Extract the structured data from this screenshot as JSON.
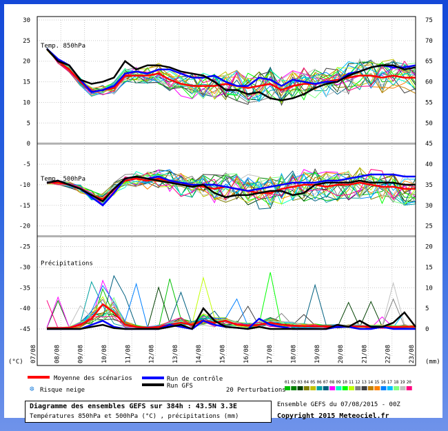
{
  "chart_data": {
    "type": "line",
    "x_ticks": [
      "07/08",
      "08/08",
      "09/08",
      "10/08",
      "11/08",
      "12/08",
      "13/08",
      "14/08",
      "15/08",
      "16/08",
      "17/08",
      "18/08",
      "19/08",
      "20/08",
      "21/08",
      "22/08",
      "23/08"
    ],
    "left_axis": {
      "unit": "(°C)",
      "ticks": [
        30,
        25,
        20,
        15,
        10,
        5,
        0,
        -5,
        -10,
        -15,
        -20,
        -25,
        -30,
        -35,
        -40,
        -45
      ],
      "range": [
        -45,
        30
      ]
    },
    "right_axis": {
      "unit": "(mm)",
      "ticks": [
        75,
        70,
        65,
        60,
        55,
        50,
        45,
        40,
        35,
        30,
        25,
        20,
        15,
        10,
        5,
        0
      ],
      "range": [
        0,
        75
      ]
    },
    "panels": [
      {
        "label": "Temp. 850hPa",
        "axis": "left",
        "series": [
          {
            "name": "Moyenne des scénarios",
            "color": "#ff0000",
            "values": [
              23,
              20,
              18,
              15,
              12.5,
              13,
              13.5,
              16.5,
              16.5,
              16.5,
              17,
              15.5,
              14.5,
              14,
              14,
              14,
              14.5,
              14,
              13.5,
              14,
              14.5,
              13,
              14,
              14.5,
              14.5,
              15,
              15.5,
              16,
              16.5,
              16.5,
              16,
              16.5,
              16,
              16
            ]
          },
          {
            "name": "Run de contrôle",
            "color": "#0000ff",
            "values": [
              23,
              20.5,
              19,
              15.5,
              12.5,
              13,
              14,
              17,
              17.5,
              17,
              18,
              18,
              17,
              16,
              16,
              16.5,
              15,
              14,
              14,
              16,
              15.5,
              14,
              15.5,
              15,
              14.5,
              15,
              15,
              17,
              17.5,
              18.5,
              19,
              18.5,
              18.5,
              19
            ]
          },
          {
            "name": "Run GFS",
            "color": "#000000",
            "values": [
              23,
              20,
              19,
              15.5,
              14.5,
              15,
              16,
              20,
              18,
              19,
              19,
              18.5,
              17.5,
              17,
              16.5,
              15,
              13,
              13,
              12,
              12.5,
              11,
              10.5,
              11,
              12,
              13.5,
              14.5,
              15,
              16.5,
              17.5,
              18.5,
              19,
              19,
              18,
              18.5
            ]
          }
        ]
      },
      {
        "label": "Temp. 500hPa",
        "axis": "left",
        "series": [
          {
            "name": "Moyenne des scénarios",
            "color": "#ff0000",
            "values": [
              -9.5,
              -9.5,
              -10,
              -11,
              -12.5,
              -13.5,
              -11,
              -9,
              -8.5,
              -9,
              -8.5,
              -9,
              -10,
              -10,
              -10.5,
              -11,
              -10.5,
              -11,
              -11.5,
              -12,
              -12,
              -11,
              -10.5,
              -10,
              -10,
              -10.5,
              -10,
              -10,
              -9.5,
              -10,
              -10.5,
              -10.5,
              -11,
              -11
            ]
          },
          {
            "name": "Run de contrôle",
            "color": "#0000ff",
            "values": [
              -9.5,
              -9,
              -10,
              -11,
              -13,
              -15,
              -12,
              -8.5,
              -8,
              -8.5,
              -8,
              -9,
              -9.5,
              -10,
              -10,
              -10,
              -10.5,
              -11,
              -11.5,
              -11,
              -10.5,
              -10,
              -9.5,
              -9.5,
              -9.5,
              -9,
              -9,
              -8.5,
              -8,
              -7.5,
              -7.5,
              -7.5,
              -8,
              -8
            ]
          },
          {
            "name": "Run GFS",
            "color": "#000000",
            "values": [
              -9.5,
              -9,
              -10,
              -11,
              -12.5,
              -14,
              -11,
              -8.5,
              -8,
              -8.5,
              -9,
              -9.5,
              -10,
              -10.5,
              -10,
              -12,
              -13,
              -12.5,
              -12.5,
              -12,
              -11.5,
              -11.5,
              -12.5,
              -12,
              -10,
              -9.5,
              -9.5,
              -9.5,
              -9,
              -9.5,
              -9.5,
              -9.5,
              -10,
              -10
            ]
          }
        ]
      },
      {
        "label": "Précipitations",
        "axis": "right",
        "series": [
          {
            "name": "Moyenne des scénarios",
            "color": "#ff0000",
            "values": [
              0.2,
              0.2,
              0.3,
              1,
              2.5,
              6,
              4,
              1,
              0.5,
              0.3,
              0.5,
              1,
              1.5,
              1,
              2,
              1.5,
              2,
              1,
              0.8,
              1,
              1.5,
              1,
              0.8,
              0.7,
              0.6,
              0.6,
              0.6,
              0.6,
              0.6,
              0.5,
              0.5,
              0.5,
              0.5,
              0.5
            ]
          },
          {
            "name": "Run de contrôle",
            "color": "#0000ff",
            "values": [
              0,
              0,
              0,
              0,
              1,
              2,
              0.5,
              0,
              0,
              0,
              0,
              1,
              0.5,
              0,
              2,
              1,
              0.5,
              0.3,
              0,
              2.5,
              1,
              0.5,
              0,
              0,
              0,
              0,
              0.5,
              0.5,
              0,
              0,
              0.5,
              0,
              0,
              0
            ]
          },
          {
            "name": "Run GFS",
            "color": "#000000",
            "values": [
              0,
              0,
              0,
              0,
              0.5,
              1,
              0.2,
              0,
              0,
              0,
              0,
              0.5,
              1,
              0,
              5,
              2,
              0.5,
              0.3,
              0,
              0.5,
              0,
              0,
              0,
              0,
              0,
              0,
              1,
              0.5,
              2,
              0.5,
              0.5,
              1.5,
              4,
              0.5
            ]
          }
        ]
      }
    ],
    "legend": {
      "mean_label": "Moyenne des scénarios",
      "control_label": "Run de contrôle",
      "gfs_label": "Run GFS",
      "snow_label": "Risque neige",
      "perturbations_label": "20 Perturbations",
      "perturbation_ids": [
        "01",
        "02",
        "03",
        "04",
        "05",
        "06",
        "07",
        "08",
        "09",
        "10",
        "11",
        "12",
        "13",
        "14",
        "15",
        "16",
        "17",
        "18",
        "19",
        "20"
      ],
      "perturbation_colors": [
        "#00c000",
        "#008000",
        "#004000",
        "#808000",
        "#c0c000",
        "#00a0a0",
        "#006080",
        "#ff00ff",
        "#00ffc0",
        "#00ff00",
        "#c0ff00",
        "#808080",
        "#404040",
        "#c08000",
        "#ff8000",
        "#0080ff",
        "#00c0ff",
        "#80ff80",
        "#c0c0c0",
        "#ff0080"
      ]
    }
  },
  "footer": {
    "title": "Diagramme des ensembles GEFS sur 384h : 43.5N 3.3E",
    "subtitle": "Températures 850hPa et 500hPa (°C) , précipitations (mm)",
    "run": "Ensemble GEFS du 07/08/2015 - 00Z",
    "copyright": "Copyright 2015 Meteociel.fr"
  },
  "colors": {
    "frame": "#1448d8",
    "grid": "#c8c8c8",
    "mean": "#ff0000",
    "control": "#0000ff",
    "gfs": "#000000"
  }
}
